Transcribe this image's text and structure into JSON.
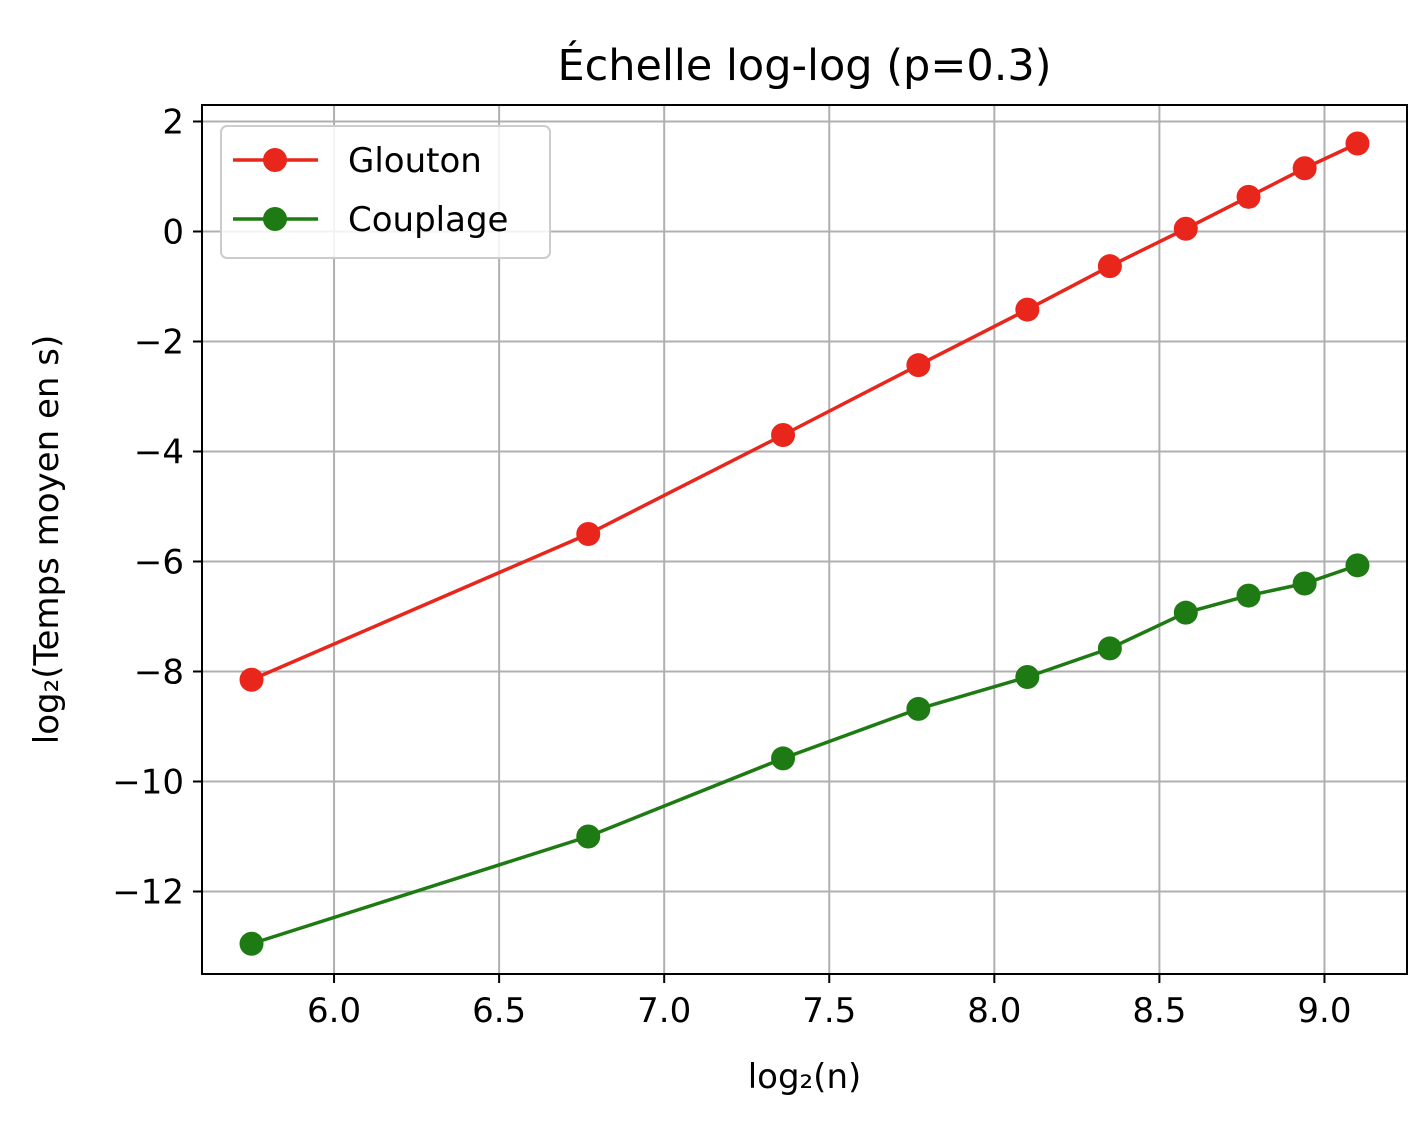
{
  "chart_data": {
    "type": "line",
    "title": "Échelle log-log (p=0.3)",
    "xlabel": "log₂(n)",
    "ylabel": "log₂(Temps moyen en s)",
    "xlim": [
      5.6,
      9.25
    ],
    "ylim": [
      -13.5,
      2.3
    ],
    "xticks": [
      6.0,
      6.5,
      7.0,
      7.5,
      8.0,
      8.5,
      9.0
    ],
    "xtick_labels": [
      "6.0",
      "6.5",
      "7.0",
      "7.5",
      "8.0",
      "8.5",
      "9.0"
    ],
    "yticks": [
      2,
      0,
      -2,
      -4,
      -6,
      -8,
      -10,
      -12
    ],
    "ytick_labels": [
      "2",
      "0",
      "−2",
      "−4",
      "−6",
      "−8",
      "−10",
      "−12"
    ],
    "grid": true,
    "legend_position": "top-left",
    "x": [
      5.75,
      6.77,
      7.36,
      7.77,
      8.1,
      8.35,
      8.58,
      8.77,
      8.94,
      9.1
    ],
    "series": [
      {
        "name": "Glouton",
        "color": "#e8261c",
        "marker": "circle",
        "values": [
          -8.15,
          -5.5,
          -3.7,
          -2.43,
          -1.42,
          -0.63,
          0.05,
          0.63,
          1.15,
          1.6
        ]
      },
      {
        "name": "Couplage",
        "color": "#1e7a12",
        "marker": "circle",
        "values": [
          -12.95,
          -11.0,
          -9.58,
          -8.68,
          -8.1,
          -7.58,
          -6.93,
          -6.62,
          -6.4,
          -6.07
        ]
      }
    ]
  }
}
